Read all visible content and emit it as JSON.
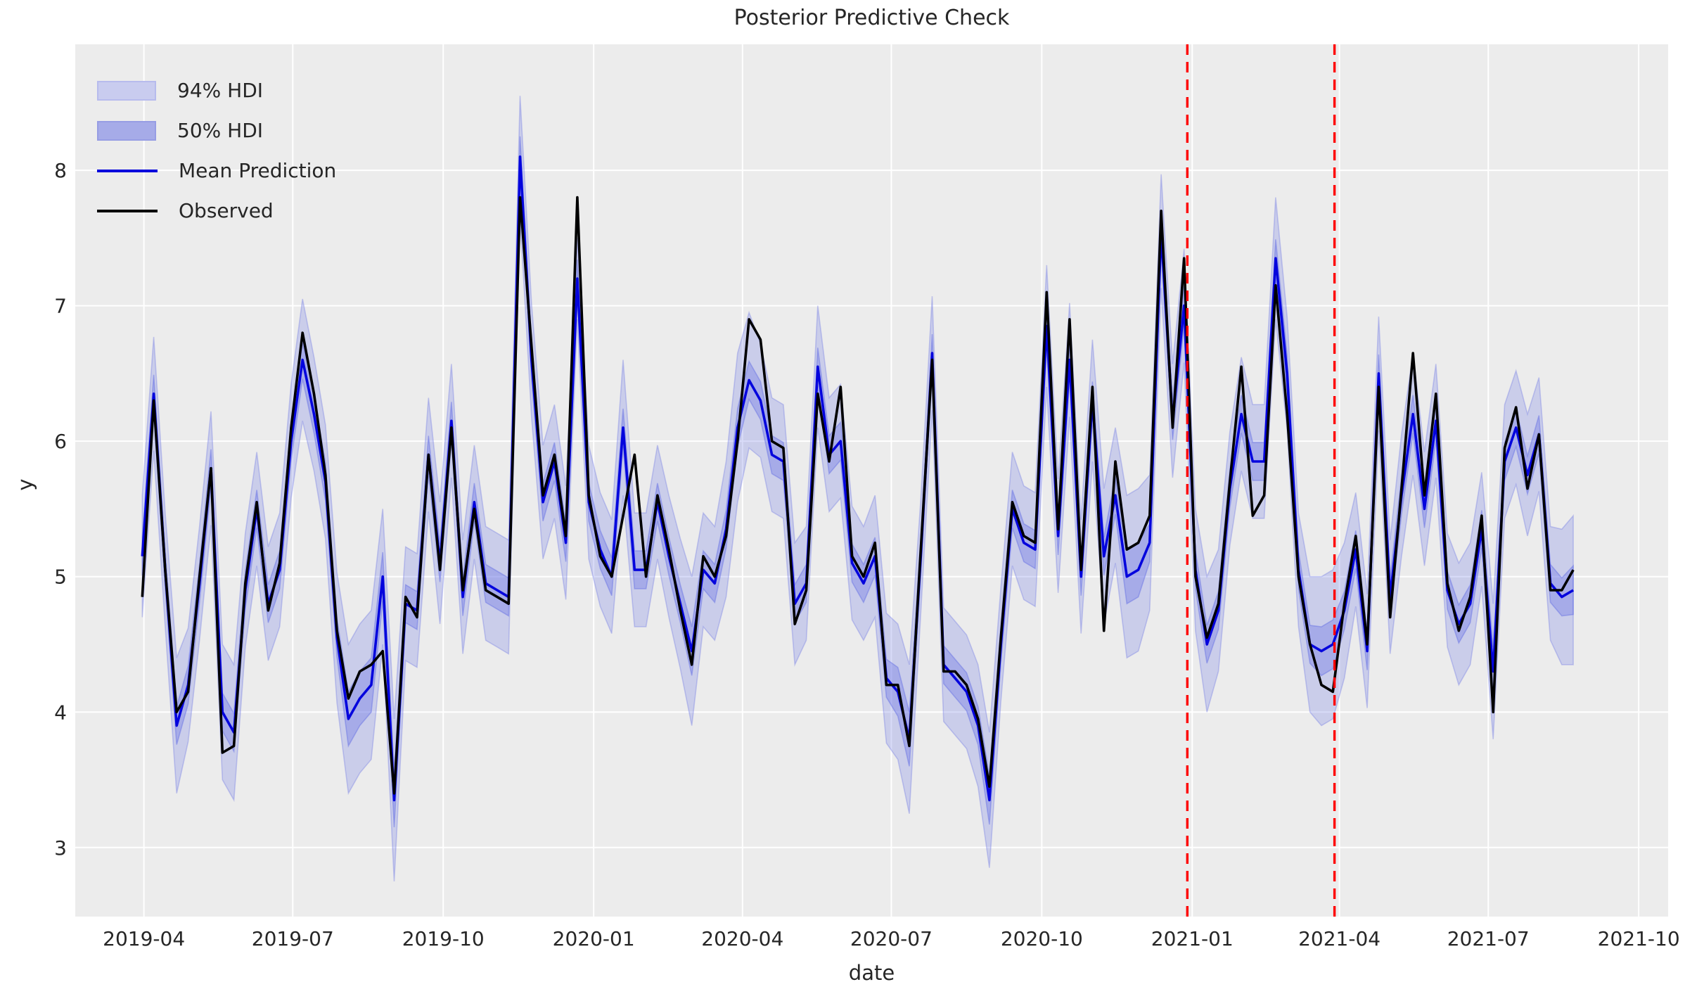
{
  "title": "Posterior Predictive Check",
  "legend": {
    "items": [
      {
        "label": "94% HDI",
        "type": "band"
      },
      {
        "label": "50% HDI",
        "type": "band"
      },
      {
        "label": "Mean Prediction",
        "type": "line"
      },
      {
        "label": "Observed",
        "type": "line"
      }
    ]
  },
  "axes": {
    "xlabel": "date",
    "ylabel": "y",
    "x_ticks": [
      {
        "date": "2019-04-01",
        "label": "2019-04"
      },
      {
        "date": "2019-07-01",
        "label": "2019-07"
      },
      {
        "date": "2019-10-01",
        "label": "2019-10"
      },
      {
        "date": "2020-01-01",
        "label": "2020-01"
      },
      {
        "date": "2020-04-01",
        "label": "2020-04"
      },
      {
        "date": "2020-07-01",
        "label": "2020-07"
      },
      {
        "date": "2020-10-01",
        "label": "2020-10"
      },
      {
        "date": "2021-01-01",
        "label": "2021-01"
      },
      {
        "date": "2021-04-01",
        "label": "2021-04"
      },
      {
        "date": "2021-07-01",
        "label": "2021-07"
      },
      {
        "date": "2021-10-01",
        "label": "2021-10"
      }
    ],
    "y_ticks": [
      3,
      4,
      5,
      6,
      7,
      8
    ],
    "ylim": [
      2.49,
      8.93
    ],
    "x_domain": [
      "2019-02-18",
      "2021-10-19"
    ],
    "grid": true
  },
  "colors": {
    "figure_bg": "#ffffff",
    "axes_bg": "#ececec",
    "grid": "#ffffff",
    "text": "#262626",
    "observed": "#000000",
    "mean": "#0404dd",
    "hdi94_fill": "rgba(99,110,228,0.25)",
    "hdi94_edge": "rgba(99,110,228,0.32)",
    "hdi50_fill": "rgba(99,110,228,0.35)",
    "hdi50_edge": "rgba(99,110,228,0.45)",
    "cutoff": "#fe0000",
    "legend_sw94_fill": "#c9ccef",
    "legend_sw94_edge": "#b7bbed",
    "legend_sw50_fill": "#a6abe8",
    "legend_sw50_edge": "#979de4"
  },
  "vlines": {
    "style": "dashed",
    "dates": [
      "2020-12-29",
      "2021-03-29"
    ]
  },
  "chart_data": {
    "type": "line",
    "title": "Posterior Predictive Check",
    "xlabel": "date",
    "ylabel": "y",
    "legend_position": "upper left",
    "x": [
      "2019-03-31",
      "2019-04-07",
      "2019-04-14",
      "2019-04-21",
      "2019-04-28",
      "2019-05-05",
      "2019-05-12",
      "2019-05-19",
      "2019-05-26",
      "2019-06-02",
      "2019-06-09",
      "2019-06-16",
      "2019-06-23",
      "2019-06-30",
      "2019-07-07",
      "2019-07-14",
      "2019-07-21",
      "2019-07-28",
      "2019-08-04",
      "2019-08-11",
      "2019-08-18",
      "2019-08-25",
      "2019-09-01",
      "2019-09-08",
      "2019-09-15",
      "2019-09-22",
      "2019-09-29",
      "2019-10-06",
      "2019-10-13",
      "2019-10-20",
      "2019-10-27",
      "2019-11-03",
      "2019-11-10",
      "2019-11-17",
      "2019-11-24",
      "2019-12-01",
      "2019-12-08",
      "2019-12-15",
      "2019-12-22",
      "2019-12-29",
      "2020-01-05",
      "2020-01-12",
      "2020-01-19",
      "2020-01-26",
      "2020-02-02",
      "2020-02-09",
      "2020-02-16",
      "2020-02-23",
      "2020-03-01",
      "2020-03-08",
      "2020-03-15",
      "2020-03-22",
      "2020-03-29",
      "2020-04-05",
      "2020-04-12",
      "2020-04-19",
      "2020-04-26",
      "2020-05-03",
      "2020-05-10",
      "2020-05-17",
      "2020-05-24",
      "2020-05-31",
      "2020-06-07",
      "2020-06-14",
      "2020-06-21",
      "2020-06-28",
      "2020-07-05",
      "2020-07-12",
      "2020-07-19",
      "2020-07-26",
      "2020-08-02",
      "2020-08-09",
      "2020-08-16",
      "2020-08-23",
      "2020-08-30",
      "2020-09-06",
      "2020-09-13",
      "2020-09-20",
      "2020-09-27",
      "2020-10-04",
      "2020-10-11",
      "2020-10-18",
      "2020-10-25",
      "2020-11-01",
      "2020-11-08",
      "2020-11-15",
      "2020-11-22",
      "2020-11-29",
      "2020-12-06",
      "2020-12-13",
      "2020-12-20",
      "2020-12-27",
      "2021-01-03",
      "2021-01-10",
      "2021-01-17",
      "2021-01-24",
      "2021-01-31",
      "2021-02-07",
      "2021-02-14",
      "2021-02-21",
      "2021-02-28",
      "2021-03-07",
      "2021-03-14",
      "2021-03-21",
      "2021-03-28",
      "2021-04-04",
      "2021-04-11",
      "2021-04-18",
      "2021-04-25",
      "2021-05-02",
      "2021-05-09",
      "2021-05-16",
      "2021-05-23",
      "2021-05-30",
      "2021-06-06",
      "2021-06-13",
      "2021-06-20",
      "2021-06-27",
      "2021-07-04",
      "2021-07-11",
      "2021-07-18",
      "2021-07-25",
      "2021-08-01",
      "2021-08-08",
      "2021-08-15",
      "2021-08-22"
    ],
    "series": [
      {
        "name": "Observed",
        "values": [
          4.85,
          6.3,
          5.05,
          4.0,
          4.15,
          5.0,
          5.8,
          3.7,
          3.75,
          4.95,
          5.55,
          4.75,
          5.1,
          6.1,
          6.8,
          6.35,
          5.75,
          4.6,
          4.1,
          4.3,
          4.35,
          4.45,
          3.4,
          4.85,
          4.7,
          5.9,
          5.05,
          6.1,
          4.9,
          5.5,
          4.9,
          4.85,
          4.8,
          7.8,
          6.7,
          5.6,
          5.9,
          5.3,
          7.8,
          5.6,
          5.15,
          5.0,
          5.45,
          5.9,
          5.0,
          5.6,
          5.2,
          4.75,
          4.35,
          5.15,
          5.0,
          5.3,
          6.0,
          6.9,
          6.75,
          6.0,
          5.95,
          4.65,
          4.9,
          6.35,
          5.85,
          6.4,
          5.15,
          5.0,
          5.25,
          4.2,
          4.2,
          3.75,
          5.2,
          6.6,
          4.3,
          4.3,
          4.2,
          3.95,
          3.45,
          4.55,
          5.55,
          5.3,
          5.25,
          7.1,
          5.35,
          6.9,
          5.05,
          6.4,
          4.6,
          5.85,
          5.2,
          5.25,
          5.45,
          7.7,
          6.1,
          7.35,
          5.0,
          4.55,
          4.8,
          5.7,
          6.55,
          5.45,
          5.6,
          7.15,
          6.2,
          5.0,
          4.5,
          4.2,
          4.15,
          4.8,
          5.3,
          4.5,
          6.4,
          4.7,
          5.65,
          6.65,
          5.6,
          6.35,
          4.95,
          4.6,
          4.85,
          5.45,
          4.0,
          5.95,
          6.25,
          5.65,
          6.05,
          4.9,
          4.9,
          5.05
        ]
      },
      {
        "name": "Mean Prediction",
        "values": [
          5.15,
          6.35,
          5.05,
          3.9,
          4.2,
          4.95,
          5.8,
          4.0,
          3.85,
          4.9,
          5.5,
          4.8,
          5.05,
          6.0,
          6.6,
          6.2,
          5.7,
          4.55,
          3.95,
          4.1,
          4.2,
          5.0,
          3.35,
          4.8,
          4.75,
          5.9,
          5.1,
          6.15,
          4.85,
          5.55,
          4.95,
          4.9,
          4.85,
          8.1,
          6.6,
          5.55,
          5.85,
          5.25,
          7.2,
          5.55,
          5.2,
          5.0,
          6.1,
          5.05,
          5.05,
          5.55,
          5.15,
          4.8,
          4.45,
          5.05,
          4.95,
          5.35,
          6.1,
          6.45,
          6.3,
          5.9,
          5.85,
          4.8,
          4.95,
          6.55,
          5.9,
          6.0,
          5.1,
          4.95,
          5.15,
          4.25,
          4.15,
          3.8,
          5.15,
          6.65,
          4.35,
          4.25,
          4.15,
          3.9,
          3.35,
          4.5,
          5.5,
          5.25,
          5.2,
          6.85,
          5.3,
          6.6,
          5.0,
          6.3,
          5.15,
          5.6,
          5.0,
          5.05,
          5.25,
          7.55,
          6.15,
          7.0,
          5.05,
          4.5,
          4.75,
          5.65,
          6.2,
          5.85,
          5.85,
          7.35,
          6.5,
          5.05,
          4.5,
          4.45,
          4.5,
          4.75,
          5.2,
          4.45,
          6.5,
          4.85,
          5.6,
          6.2,
          5.5,
          6.15,
          4.9,
          4.65,
          4.8,
          5.35,
          4.3,
          5.85,
          6.1,
          5.75,
          6.05,
          4.95,
          4.85,
          4.9
        ]
      }
    ],
    "hdi94_halfwidth": [
      0.45,
      0.42,
      0.42,
      0.5,
      0.42,
      0.42,
      0.42,
      0.5,
      0.5,
      0.42,
      0.42,
      0.42,
      0.42,
      0.42,
      0.45,
      0.42,
      0.42,
      0.48,
      0.55,
      0.55,
      0.55,
      0.5,
      0.6,
      0.42,
      0.42,
      0.42,
      0.45,
      0.42,
      0.42,
      0.42,
      0.42,
      0.42,
      0.42,
      0.45,
      0.42,
      0.42,
      0.42,
      0.42,
      0.3,
      0.42,
      0.42,
      0.42,
      0.5,
      0.42,
      0.42,
      0.42,
      0.45,
      0.48,
      0.55,
      0.42,
      0.42,
      0.5,
      0.55,
      0.5,
      0.42,
      0.42,
      0.42,
      0.45,
      0.42,
      0.45,
      0.42,
      0.42,
      0.42,
      0.42,
      0.45,
      0.48,
      0.5,
      0.55,
      0.42,
      0.42,
      0.42,
      0.42,
      0.42,
      0.45,
      0.5,
      0.42,
      0.42,
      0.42,
      0.42,
      0.45,
      0.42,
      0.42,
      0.42,
      0.45,
      0.5,
      0.5,
      0.6,
      0.6,
      0.5,
      0.42,
      0.42,
      0.42,
      0.45,
      0.5,
      0.45,
      0.42,
      0.42,
      0.42,
      0.42,
      0.45,
      0.42,
      0.42,
      0.5,
      0.55,
      0.55,
      0.5,
      0.42,
      0.42,
      0.42,
      0.42,
      0.45,
      0.45,
      0.42,
      0.42,
      0.42,
      0.45,
      0.45,
      0.42,
      0.5,
      0.42,
      0.42,
      0.45,
      0.42,
      0.42,
      0.5,
      0.55
    ],
    "hdi50_halfwidth": [
      0.14,
      0.14,
      0.14,
      0.14,
      0.14,
      0.14,
      0.14,
      0.14,
      0.14,
      0.14,
      0.14,
      0.14,
      0.14,
      0.14,
      0.14,
      0.14,
      0.14,
      0.14,
      0.2,
      0.2,
      0.2,
      0.18,
      0.2,
      0.14,
      0.14,
      0.14,
      0.14,
      0.14,
      0.14,
      0.14,
      0.14,
      0.14,
      0.14,
      0.15,
      0.14,
      0.14,
      0.14,
      0.14,
      0.14,
      0.14,
      0.14,
      0.14,
      0.14,
      0.14,
      0.14,
      0.14,
      0.14,
      0.14,
      0.18,
      0.14,
      0.14,
      0.14,
      0.14,
      0.14,
      0.14,
      0.14,
      0.14,
      0.14,
      0.14,
      0.14,
      0.14,
      0.14,
      0.14,
      0.14,
      0.14,
      0.14,
      0.18,
      0.2,
      0.14,
      0.14,
      0.14,
      0.14,
      0.14,
      0.14,
      0.18,
      0.14,
      0.14,
      0.14,
      0.14,
      0.14,
      0.14,
      0.14,
      0.14,
      0.14,
      0.14,
      0.14,
      0.2,
      0.2,
      0.14,
      0.14,
      0.14,
      0.14,
      0.14,
      0.14,
      0.14,
      0.14,
      0.14,
      0.14,
      0.14,
      0.14,
      0.14,
      0.14,
      0.14,
      0.18,
      0.18,
      0.14,
      0.14,
      0.14,
      0.14,
      0.14,
      0.14,
      0.14,
      0.14,
      0.14,
      0.14,
      0.14,
      0.14,
      0.14,
      0.18,
      0.14,
      0.14,
      0.14,
      0.14,
      0.14,
      0.14,
      0.18
    ],
    "cutoff_dates": [
      "2020-12-29",
      "2021-03-29"
    ],
    "x_tick_labels": [
      "2019-04",
      "2019-07",
      "2019-10",
      "2020-01",
      "2020-04",
      "2020-07",
      "2020-10",
      "2021-01",
      "2021-04",
      "2021-07",
      "2021-10"
    ],
    "y_tick_labels": [
      "3",
      "4",
      "5",
      "6",
      "7",
      "8"
    ],
    "ylim": [
      2.49,
      8.93
    ]
  }
}
